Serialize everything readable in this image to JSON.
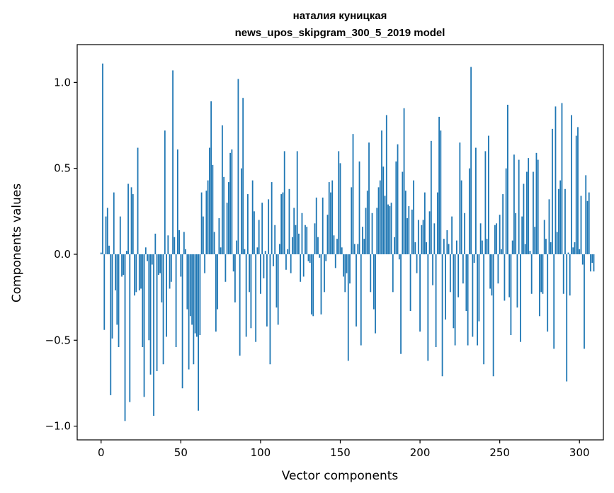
{
  "chart_data": {
    "type": "bar",
    "title_line1": "наталия куницкая",
    "title_line2": "news_upos_skipgram_300_5_2019 model",
    "xlabel": "Vector components",
    "ylabel": "Components values",
    "xlim": [
      -15,
      315
    ],
    "ylim": [
      -1.08,
      1.22
    ],
    "xticks": [
      0,
      50,
      100,
      150,
      200,
      250,
      300
    ],
    "xtick_labels": [
      "0",
      "50",
      "100",
      "150",
      "200",
      "250",
      "300"
    ],
    "yticks": [
      -1.0,
      -0.5,
      0.0,
      0.5,
      1.0
    ],
    "ytick_labels": [
      "−1.0",
      "−0.5",
      "0.0",
      "0.5",
      "1.0"
    ],
    "color": "#1f77b4",
    "values": [
      0.01,
      1.11,
      -0.44,
      0.22,
      0.27,
      0.05,
      -0.82,
      -0.49,
      0.36,
      -0.21,
      -0.41,
      -0.54,
      0.22,
      -0.13,
      -0.12,
      -0.97,
      0.02,
      0.41,
      -0.86,
      0.39,
      0.35,
      -0.24,
      -0.22,
      0.62,
      -0.21,
      -0.2,
      -0.54,
      -0.83,
      0.04,
      -0.04,
      -0.5,
      -0.7,
      -0.06,
      -0.94,
      0.12,
      -0.68,
      -0.12,
      -0.11,
      -0.28,
      -0.64,
      0.72,
      -0.48,
      0.11,
      -0.2,
      -0.16,
      1.07,
      0.1,
      -0.54,
      0.61,
      0.14,
      -0.13,
      -0.78,
      0.13,
      0.03,
      -0.32,
      -0.67,
      -0.36,
      -0.41,
      -0.64,
      -0.46,
      -0.48,
      -0.91,
      -0.47,
      0.36,
      0.22,
      -0.11,
      0.37,
      0.43,
      0.62,
      0.89,
      0.52,
      0.13,
      -0.45,
      -0.32,
      0.21,
      0.04,
      0.75,
      0.45,
      -0.16,
      0.3,
      0.42,
      0.59,
      0.61,
      -0.1,
      -0.28,
      0.08,
      1.02,
      -0.59,
      0.5,
      0.91,
      0.03,
      -0.48,
      0.35,
      -0.22,
      -0.43,
      0.43,
      0.25,
      -0.51,
      0.04,
      0.2,
      -0.23,
      0.3,
      -0.14,
      0.02,
      -0.42,
      0.32,
      -0.64,
      0.42,
      -0.07,
      0.17,
      -0.31,
      -0.41,
      0.06,
      0.35,
      0.36,
      0.6,
      -0.09,
      0.03,
      0.38,
      -0.11,
      0.1,
      0.27,
      0.17,
      0.6,
      0.12,
      -0.16,
      0.24,
      -0.13,
      0.17,
      0.16,
      -0.04,
      -0.05,
      -0.35,
      -0.36,
      0.18,
      0.33,
      0.1,
      -0.02,
      -0.35,
      0.33,
      -0.22,
      -0.04,
      0.23,
      0.42,
      0.36,
      0.43,
      0.11,
      -0.08,
      0.09,
      0.6,
      0.53,
      0.04,
      -0.13,
      -0.22,
      -0.11,
      -0.62,
      -0.17,
      0.39,
      0.7,
      0.06,
      -0.42,
      0.06,
      0.54,
      -0.53,
      0.16,
      0.09,
      0.27,
      0.37,
      0.65,
      -0.22,
      0.24,
      -0.32,
      -0.46,
      0.27,
      0.39,
      0.43,
      0.72,
      0.51,
      0.34,
      0.81,
      0.29,
      0.28,
      0.3,
      -0.22,
      0.1,
      0.54,
      0.64,
      -0.03,
      -0.58,
      0.48,
      0.85,
      0.37,
      0.21,
      0.28,
      -0.33,
      0.26,
      0.43,
      0.07,
      -0.11,
      0.2,
      -0.45,
      0.17,
      0.2,
      0.36,
      0.07,
      -0.62,
      0.25,
      0.66,
      -0.18,
      0.18,
      -0.54,
      0.36,
      0.8,
      0.72,
      -0.71,
      0.09,
      -0.38,
      0.14,
      0.06,
      -0.22,
      0.22,
      -0.43,
      -0.53,
      0.08,
      -0.25,
      0.65,
      0.43,
      -0.17,
      0.24,
      -0.33,
      -0.53,
      0.5,
      1.09,
      -0.48,
      -0.05,
      0.62,
      -0.53,
      -0.39,
      0.18,
      0.08,
      -0.64,
      0.6,
      0.09,
      0.69,
      -0.2,
      -0.24,
      -0.71,
      0.17,
      0.18,
      -0.17,
      0.23,
      0.03,
      0.35,
      -0.27,
      0.5,
      0.87,
      -0.25,
      -0.47,
      0.08,
      0.58,
      0.24,
      -0.31,
      0.55,
      -0.51,
      0.22,
      0.41,
      0.06,
      0.48,
      0.56,
      0.02,
      -0.23,
      0.48,
      0.16,
      0.59,
      0.55,
      -0.36,
      -0.22,
      -0.23,
      0.2,
      0.09,
      -0.45,
      0.32,
      0.07,
      0.73,
      -0.55,
      0.86,
      0.13,
      0.38,
      0.43,
      0.88,
      -0.23,
      0.38,
      -0.74,
      0.01,
      -0.24,
      0.81,
      0.04,
      0.07,
      0.69,
      0.74,
      0.03,
      0.34,
      -0.06,
      -0.55,
      0.46,
      0.31,
      0.36,
      -0.1,
      -0.05,
      -0.1
    ]
  }
}
